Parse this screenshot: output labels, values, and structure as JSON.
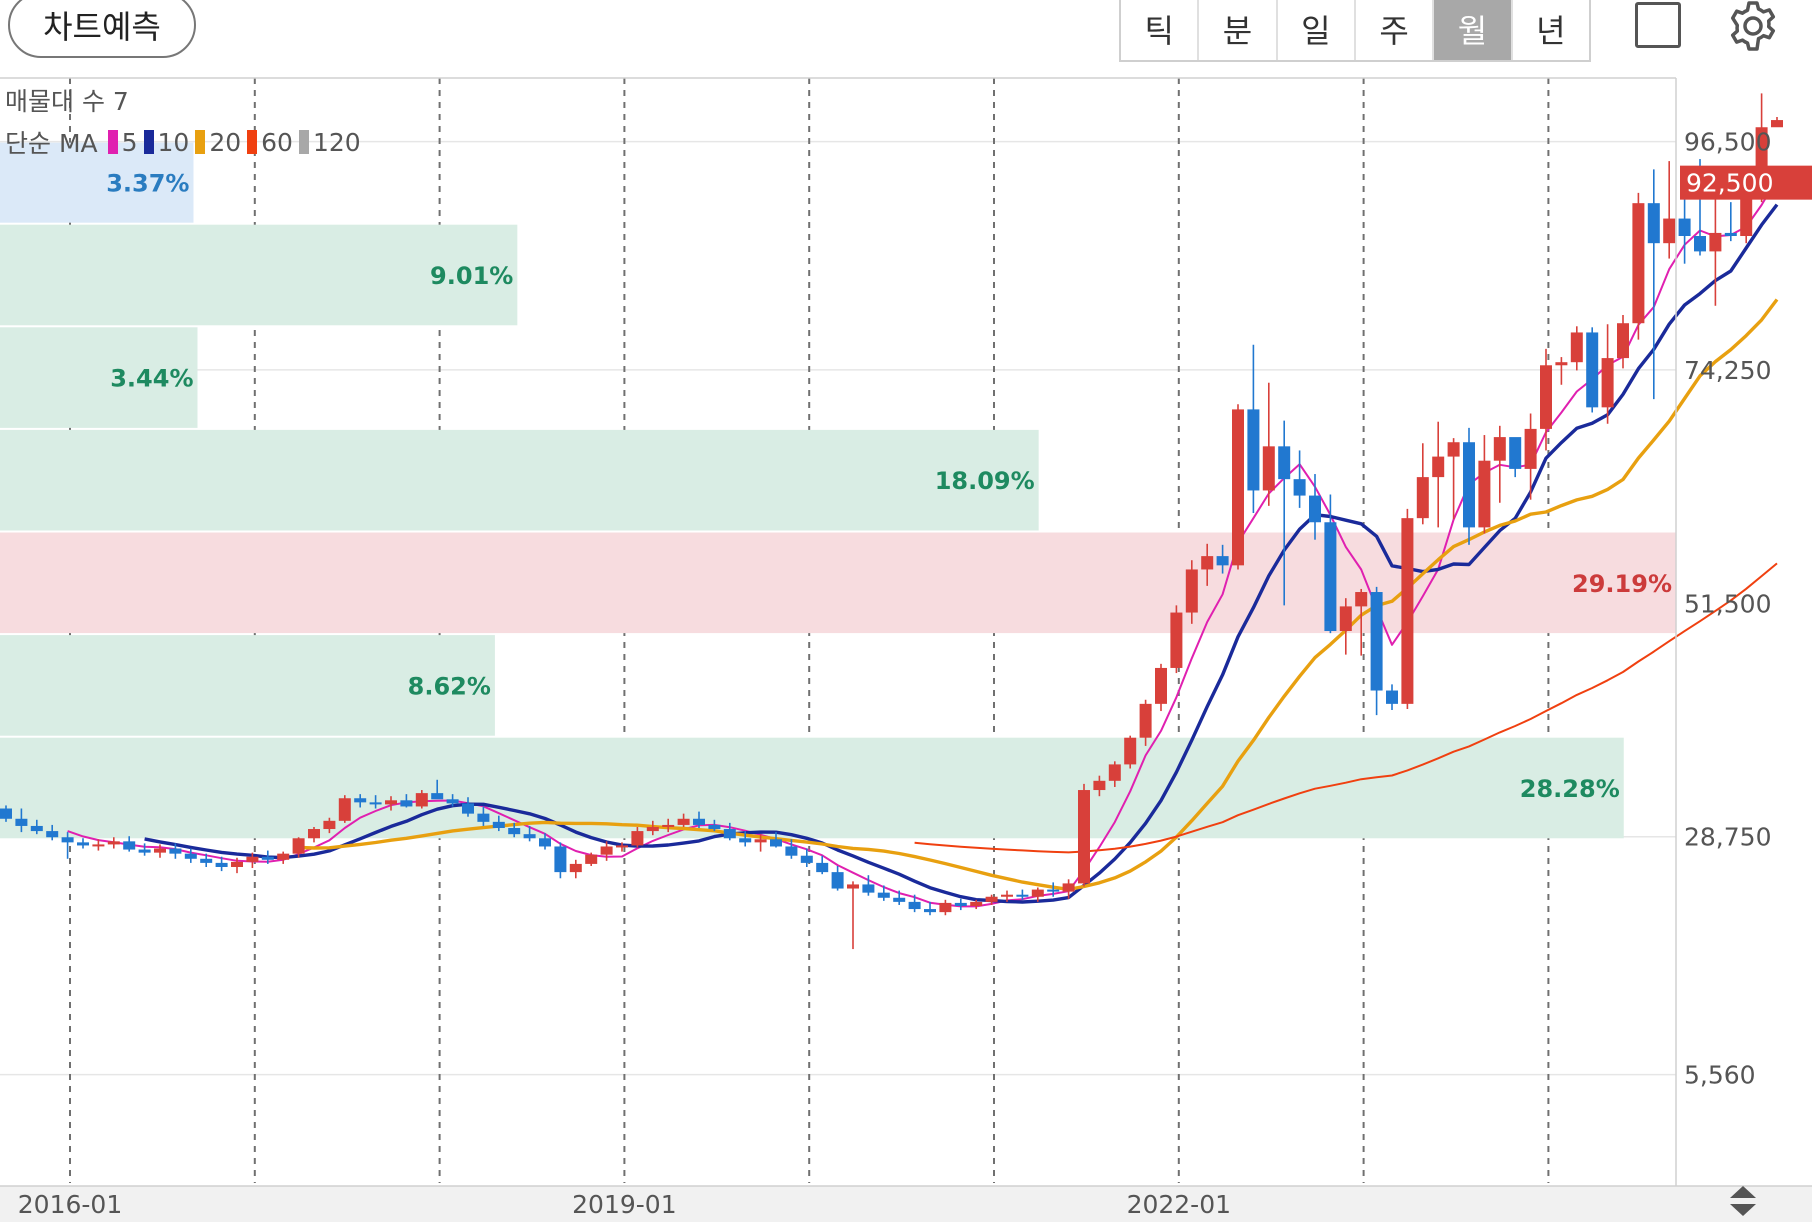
{
  "toolbar": {
    "predict_label": "차트예측",
    "periods": [
      "틱",
      "분",
      "일",
      "주",
      "월",
      "년"
    ],
    "active_period": "월"
  },
  "volume_profile": {
    "label": "매물대 수 7",
    "bins": [
      {
        "low": 88500,
        "high": 96500,
        "pct": 3.37,
        "pct_label": "3.37%",
        "color": "#dbe9f8",
        "text_color": "#2a7cc0"
      },
      {
        "low": 78500,
        "high": 88500,
        "pct": 9.01,
        "pct_label": "9.01%",
        "color": "#d9ede4",
        "text_color": "#1e8a60"
      },
      {
        "low": 68500,
        "high": 78500,
        "pct": 3.44,
        "pct_label": "3.44%",
        "color": "#d9ede4",
        "text_color": "#1e8a60"
      },
      {
        "low": 58500,
        "high": 68500,
        "pct": 18.09,
        "pct_label": "18.09%",
        "color": "#d9ede4",
        "text_color": "#1e8a60"
      },
      {
        "low": 48500,
        "high": 58500,
        "pct": 29.19,
        "pct_label": "29.19%",
        "color": "#f7dcdf",
        "text_color": "#cc3b3b"
      },
      {
        "low": 38500,
        "high": 48500,
        "pct": 8.62,
        "pct_label": "8.62%",
        "color": "#d9ede4",
        "text_color": "#1e8a60"
      },
      {
        "low": 28500,
        "high": 38500,
        "pct": 28.28,
        "pct_label": "28.28%",
        "color": "#d9ede4",
        "text_color": "#1e8a60"
      }
    ]
  },
  "ma_legend": {
    "title": "단순 MA",
    "items": [
      {
        "period": "5",
        "color": "#e020b0"
      },
      {
        "period": "10",
        "color": "#1a2a9a"
      },
      {
        "period": "20",
        "color": "#e8a010"
      },
      {
        "period": "60",
        "color": "#f04010"
      },
      {
        "period": "120",
        "color": "#a8a8a8"
      }
    ]
  },
  "chart_data": {
    "type": "candlestick",
    "y_axis": {
      "ticks": [
        96500,
        74250,
        51500,
        28750,
        5560
      ],
      "tick_labels": [
        "96,500",
        "74,250",
        "51,500",
        "28,750",
        "5,560"
      ],
      "range": [
        -5000,
        102700
      ]
    },
    "x_axis": {
      "tick_labels": [
        "2016-01",
        "2019-01",
        "2022-01"
      ],
      "grid": "dashed vertical every 12 months"
    },
    "current_price": 92500,
    "current_price_label": "92,500",
    "up_color": "#d8403a",
    "down_color": "#2178d0",
    "candles": [
      [
        31500,
        31800,
        30200,
        30500
      ],
      [
        30500,
        31500,
        29200,
        29800
      ],
      [
        29800,
        30400,
        29000,
        29300
      ],
      [
        29300,
        29900,
        28400,
        28700
      ],
      [
        28700,
        29200,
        26600,
        28200
      ],
      [
        28200,
        28600,
        27600,
        27900
      ],
      [
        27900,
        28500,
        27400,
        28000
      ],
      [
        28000,
        28700,
        27600,
        28300
      ],
      [
        28300,
        28800,
        27300,
        27500
      ],
      [
        27500,
        28100,
        26900,
        27200
      ],
      [
        27200,
        28000,
        26700,
        27600
      ],
      [
        27600,
        28100,
        26600,
        27100
      ],
      [
        27100,
        27600,
        26200,
        26600
      ],
      [
        26600,
        27100,
        25800,
        26200
      ],
      [
        26200,
        26800,
        25400,
        25800
      ],
      [
        25800,
        26700,
        25200,
        26300
      ],
      [
        26300,
        27200,
        25700,
        26800
      ],
      [
        26800,
        27400,
        26100,
        26500
      ],
      [
        26500,
        27300,
        26100,
        27100
      ],
      [
        27100,
        28700,
        26700,
        28600
      ],
      [
        28600,
        29700,
        28200,
        29500
      ],
      [
        29500,
        30600,
        29100,
        30300
      ],
      [
        30300,
        32800,
        30100,
        32500
      ],
      [
        32500,
        32900,
        31600,
        32100
      ],
      [
        32100,
        32800,
        31500,
        31900
      ],
      [
        31900,
        32700,
        31300,
        32300
      ],
      [
        32300,
        32900,
        31600,
        31700
      ],
      [
        31700,
        33300,
        31500,
        33000
      ],
      [
        33000,
        34300,
        32700,
        32400
      ],
      [
        32400,
        32900,
        31700,
        32000
      ],
      [
        32000,
        32600,
        30700,
        31000
      ],
      [
        31000,
        31700,
        29800,
        30200
      ],
      [
        30200,
        30800,
        29300,
        29600
      ],
      [
        29600,
        30100,
        28700,
        29000
      ],
      [
        29000,
        29800,
        28300,
        28600
      ],
      [
        28600,
        29100,
        27500,
        27800
      ],
      [
        27800,
        28200,
        24700,
        25300
      ],
      [
        25300,
        26500,
        24700,
        26100
      ],
      [
        26100,
        27200,
        25900,
        27000
      ],
      [
        27000,
        28300,
        26400,
        27800
      ],
      [
        27800,
        28200,
        27300,
        27900
      ],
      [
        27900,
        29700,
        27700,
        29300
      ],
      [
        29300,
        30300,
        28900,
        29700
      ],
      [
        29700,
        30500,
        29200,
        29900
      ],
      [
        29900,
        31000,
        29700,
        30500
      ],
      [
        30500,
        31200,
        29600,
        29900
      ],
      [
        29900,
        30400,
        29300,
        29500
      ],
      [
        29500,
        30100,
        28400,
        28600
      ],
      [
        28600,
        29300,
        27800,
        28200
      ],
      [
        28200,
        29000,
        27300,
        28500
      ],
      [
        28500,
        29200,
        27700,
        27800
      ],
      [
        27800,
        28500,
        26600,
        26900
      ],
      [
        26900,
        27600,
        25800,
        26200
      ],
      [
        26200,
        26900,
        25100,
        25300
      ],
      [
        25300,
        25900,
        23500,
        23700
      ],
      [
        23700,
        24400,
        17800,
        24100
      ],
      [
        24100,
        25000,
        23000,
        23300
      ],
      [
        23300,
        24000,
        22500,
        22800
      ],
      [
        22800,
        23500,
        22100,
        22400
      ],
      [
        22400,
        23100,
        21400,
        21700
      ],
      [
        21700,
        22400,
        21100,
        21400
      ],
      [
        21400,
        22600,
        21100,
        22300
      ],
      [
        22300,
        22700,
        21600,
        22000
      ],
      [
        22000,
        22600,
        21700,
        22400
      ],
      [
        22400,
        23100,
        22100,
        22900
      ],
      [
        22900,
        23500,
        22400,
        23100
      ],
      [
        23100,
        23600,
        22600,
        22900
      ],
      [
        22900,
        23800,
        22400,
        23600
      ],
      [
        23600,
        24300,
        22900,
        23400
      ],
      [
        23400,
        24600,
        22700,
        24200
      ],
      [
        24200,
        33900,
        23900,
        33300
      ],
      [
        33300,
        34700,
        32700,
        34200
      ],
      [
        34200,
        36100,
        33600,
        35800
      ],
      [
        35800,
        38600,
        35400,
        38400
      ],
      [
        38400,
        42100,
        37600,
        41700
      ],
      [
        41700,
        45600,
        41000,
        45200
      ],
      [
        45200,
        51300,
        44700,
        50600
      ],
      [
        50600,
        55700,
        49500,
        54800
      ],
      [
        54800,
        57300,
        53200,
        56100
      ],
      [
        56100,
        57200,
        54400,
        55200
      ],
      [
        55200,
        70900,
        54800,
        70400
      ],
      [
        70400,
        76700,
        60300,
        62500
      ],
      [
        62500,
        73000,
        61000,
        66800
      ],
      [
        66800,
        69300,
        51300,
        63600
      ],
      [
        63600,
        66400,
        60800,
        62000
      ],
      [
        62000,
        64100,
        57700,
        59400
      ],
      [
        59400,
        62100,
        48600,
        48800
      ],
      [
        48800,
        52000,
        46500,
        51200
      ],
      [
        51200,
        52900,
        46400,
        52600
      ],
      [
        52600,
        53100,
        40600,
        43000
      ],
      [
        43000,
        43600,
        41100,
        41700
      ],
      [
        41700,
        60700,
        41200,
        59800
      ],
      [
        59800,
        67100,
        59200,
        63800
      ],
      [
        63800,
        69200,
        58900,
        65800
      ],
      [
        65800,
        67600,
        59700,
        67200
      ],
      [
        67200,
        68600,
        57200,
        58900
      ],
      [
        58900,
        67900,
        58300,
        65400
      ],
      [
        65400,
        68800,
        61300,
        67700
      ],
      [
        67700,
        67300,
        63800,
        64600
      ],
      [
        64600,
        70000,
        61600,
        68500
      ],
      [
        68500,
        76300,
        66400,
        74700
      ],
      [
        74700,
        75500,
        72800,
        75000
      ],
      [
        75000,
        78500,
        74200,
        77900
      ],
      [
        77900,
        78400,
        70100,
        70600
      ],
      [
        70600,
        78700,
        69000,
        75400
      ],
      [
        75400,
        79600,
        74400,
        78800
      ],
      [
        78800,
        91500,
        77200,
        90500
      ],
      [
        90500,
        93800,
        71400,
        86600
      ],
      [
        86600,
        94600,
        85100,
        89000
      ],
      [
        89000,
        91400,
        84600,
        87300
      ],
      [
        87300,
        94800,
        85400,
        85800
      ],
      [
        85800,
        92000,
        80500,
        87600
      ],
      [
        87600,
        90600,
        86800,
        87300
      ],
      [
        87300,
        93900,
        86600,
        93000
      ],
      [
        93000,
        101200,
        90600,
        97900
      ],
      [
        97900,
        98900,
        98100,
        98600
      ]
    ]
  }
}
